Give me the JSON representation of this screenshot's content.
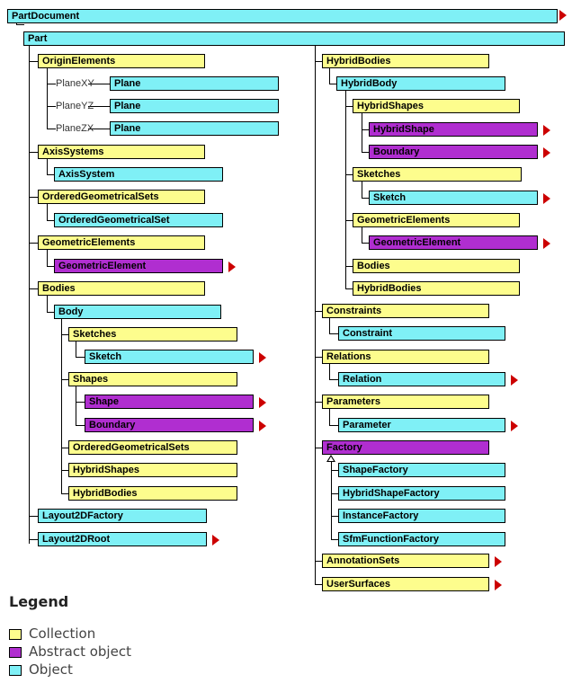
{
  "nodes": [
    {
      "id": "PartDocument",
      "label": "PartDocument",
      "kind": "o",
      "arrow": true
    },
    {
      "id": "Part",
      "label": "Part",
      "kind": "o",
      "arrow": false
    },
    {
      "id": "OriginElements",
      "label": "OriginElements",
      "kind": "c"
    },
    {
      "id": "PlaneXY",
      "label": "Plane",
      "kind": "o",
      "prefix": "PlaneXY"
    },
    {
      "id": "PlaneYZ",
      "label": "Plane",
      "kind": "o",
      "prefix": "PlaneYZ"
    },
    {
      "id": "PlaneZX",
      "label": "Plane",
      "kind": "o",
      "prefix": "PlaneZX"
    },
    {
      "id": "AxisSystems",
      "label": "AxisSystems",
      "kind": "c"
    },
    {
      "id": "AxisSystem",
      "label": "AxisSystem",
      "kind": "o"
    },
    {
      "id": "OrderedGeometricalSets",
      "label": "OrderedGeometricalSets",
      "kind": "c"
    },
    {
      "id": "OrderedGeometricalSet",
      "label": "OrderedGeometricalSet",
      "kind": "o"
    },
    {
      "id": "GeometricElements",
      "label": "GeometricElements",
      "kind": "c"
    },
    {
      "id": "GeometricElement",
      "label": "GeometricElement",
      "kind": "a",
      "arrow": true
    },
    {
      "id": "Bodies",
      "label": "Bodies",
      "kind": "c"
    },
    {
      "id": "Body",
      "label": "Body",
      "kind": "o"
    },
    {
      "id": "B_Sketches",
      "label": "Sketches",
      "kind": "c"
    },
    {
      "id": "B_Sketch",
      "label": "Sketch",
      "kind": "o",
      "arrow": true
    },
    {
      "id": "Shapes",
      "label": "Shapes",
      "kind": "c"
    },
    {
      "id": "Shape",
      "label": "Shape",
      "kind": "a",
      "arrow": true
    },
    {
      "id": "B_Boundary",
      "label": "Boundary",
      "kind": "a",
      "arrow": true
    },
    {
      "id": "B_OGS",
      "label": "OrderedGeometricalSets",
      "kind": "c"
    },
    {
      "id": "B_HybridShapes",
      "label": "HybridShapes",
      "kind": "c"
    },
    {
      "id": "B_HybridBodies",
      "label": "HybridBodies",
      "kind": "c"
    },
    {
      "id": "Layout2DFactory",
      "label": "Layout2DFactory",
      "kind": "o"
    },
    {
      "id": "Layout2DRoot",
      "label": "Layout2DRoot",
      "kind": "o",
      "arrow": true
    },
    {
      "id": "HybridBodies",
      "label": "HybridBodies",
      "kind": "c"
    },
    {
      "id": "HybridBody",
      "label": "HybridBody",
      "kind": "o"
    },
    {
      "id": "HybridShapes",
      "label": "HybridShapes",
      "kind": "c"
    },
    {
      "id": "HybridShape",
      "label": "HybridShape",
      "kind": "a",
      "arrow": true
    },
    {
      "id": "H_Boundary",
      "label": "Boundary",
      "kind": "a",
      "arrow": true
    },
    {
      "id": "H_Sketches",
      "label": "Sketches",
      "kind": "c"
    },
    {
      "id": "H_Sketch",
      "label": "Sketch",
      "kind": "o",
      "arrow": true
    },
    {
      "id": "H_GeometricElements",
      "label": "GeometricElements",
      "kind": "c"
    },
    {
      "id": "H_GeometricElement",
      "label": "GeometricElement",
      "kind": "a",
      "arrow": true
    },
    {
      "id": "H_Bodies",
      "label": "Bodies",
      "kind": "c"
    },
    {
      "id": "H_HybridBodies",
      "label": "HybridBodies",
      "kind": "c"
    },
    {
      "id": "Constraints",
      "label": "Constraints",
      "kind": "c"
    },
    {
      "id": "Constraint",
      "label": "Constraint",
      "kind": "o"
    },
    {
      "id": "Relations",
      "label": "Relations",
      "kind": "c"
    },
    {
      "id": "Relation",
      "label": "Relation",
      "kind": "o",
      "arrow": true
    },
    {
      "id": "Parameters",
      "label": "Parameters",
      "kind": "c"
    },
    {
      "id": "Parameter",
      "label": "Parameter",
      "kind": "o",
      "arrow": true
    },
    {
      "id": "Factory",
      "label": "Factory",
      "kind": "a"
    },
    {
      "id": "ShapeFactory",
      "label": "ShapeFactory",
      "kind": "o"
    },
    {
      "id": "HybridShapeFactory",
      "label": "HybridShapeFactory",
      "kind": "o"
    },
    {
      "id": "InstanceFactory",
      "label": "InstanceFactory",
      "kind": "o"
    },
    {
      "id": "SfmFunctionFactory",
      "label": "SfmFunctionFactory",
      "kind": "o"
    },
    {
      "id": "AnnotationSets",
      "label": "AnnotationSets",
      "kind": "c",
      "arrow": true
    },
    {
      "id": "UserSurfaces",
      "label": "UserSurfaces",
      "kind": "c",
      "arrow": true
    }
  ],
  "legend": {
    "title": "Legend",
    "items": [
      {
        "label": "Collection",
        "color": "#fdfd8d"
      },
      {
        "label": "Abstract object",
        "color": "#b02ed0"
      },
      {
        "label": "Object",
        "color": "#7ff0f6"
      }
    ]
  }
}
